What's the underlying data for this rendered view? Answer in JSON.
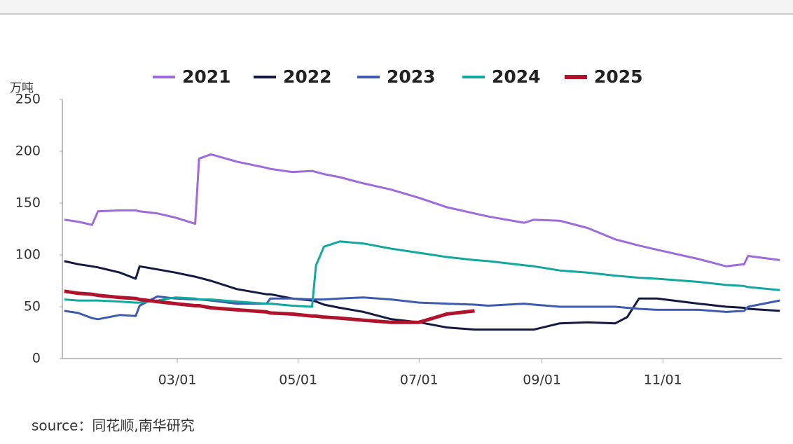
{
  "chart_data": {
    "type": "line",
    "y_label": "万吨",
    "source": "source：同花顺,南华研究",
    "x": [
      3,
      10,
      17,
      20,
      31,
      39,
      41,
      50,
      59,
      69,
      71,
      77,
      90,
      105,
      107,
      118,
      128,
      130,
      134,
      142,
      154,
      168,
      182,
      196,
      210,
      217,
      235,
      240,
      253,
      267,
      281,
      287,
      293,
      302,
      323,
      337,
      346,
      348,
      364
    ],
    "xlim": [
      2,
      365
    ],
    "xticks": [
      {
        "value": 60,
        "label": "03/01"
      },
      {
        "value": 121,
        "label": "05/01"
      },
      {
        "value": 182,
        "label": "07/01"
      },
      {
        "value": 244,
        "label": "09/01"
      },
      {
        "value": 305,
        "label": "11/01"
      }
    ],
    "ylim": [
      0,
      250
    ],
    "yticks": [
      0,
      50,
      100,
      150,
      200,
      250
    ],
    "grid": false,
    "legend": "top",
    "series": [
      {
        "name": "2021",
        "color": "#9e6bdb",
        "values": [
          134,
          132,
          129,
          142,
          143,
          143,
          142,
          140,
          136,
          130,
          193,
          197,
          190,
          184,
          183,
          180,
          181,
          180,
          178,
          175,
          169,
          163,
          155,
          146,
          140,
          137,
          131,
          134,
          133,
          126,
          115,
          112,
          109,
          105,
          96,
          89,
          91,
          99,
          95
        ]
      },
      {
        "name": "2022",
        "color": "#14193f",
        "values": [
          94,
          91,
          89,
          88,
          83,
          77,
          89,
          86,
          83,
          79,
          78,
          75,
          67,
          62,
          62,
          58,
          56,
          55,
          52,
          49,
          45,
          38,
          35,
          30,
          28,
          28,
          28,
          28,
          34,
          35,
          34,
          40,
          58,
          58,
          53,
          50,
          49,
          48,
          46
        ]
      },
      {
        "name": "2023",
        "color": "#3f5bb0",
        "values": [
          46,
          44,
          39,
          38,
          42,
          41,
          51,
          60,
          58,
          57,
          57,
          56,
          53,
          53,
          58,
          58,
          57,
          57,
          57,
          58,
          59,
          57,
          54,
          53,
          52,
          51,
          53,
          52,
          50,
          50,
          50,
          49,
          48,
          47,
          47,
          45,
          46,
          50,
          56
        ]
      },
      {
        "name": "2024",
        "color": "#13a89e",
        "values": [
          57,
          56,
          56,
          56,
          55,
          54,
          54,
          56,
          59,
          58,
          57,
          57,
          55,
          53,
          53,
          51,
          50,
          90,
          108,
          113,
          111,
          106,
          102,
          98,
          95,
          94,
          90,
          89,
          85,
          83,
          80,
          79,
          78,
          77,
          74,
          71,
          70,
          69,
          66
        ]
      },
      {
        "name": "2025",
        "color": "#b0132c",
        "values": [
          65,
          63,
          62,
          61,
          59,
          58,
          57,
          55,
          53,
          51,
          51,
          49,
          47,
          45,
          44,
          43,
          41,
          41,
          40,
          39,
          37,
          35,
          35,
          43,
          46,
          null,
          null,
          null,
          null,
          null,
          null,
          null,
          null,
          null,
          null,
          null,
          null,
          null,
          null
        ]
      }
    ]
  }
}
